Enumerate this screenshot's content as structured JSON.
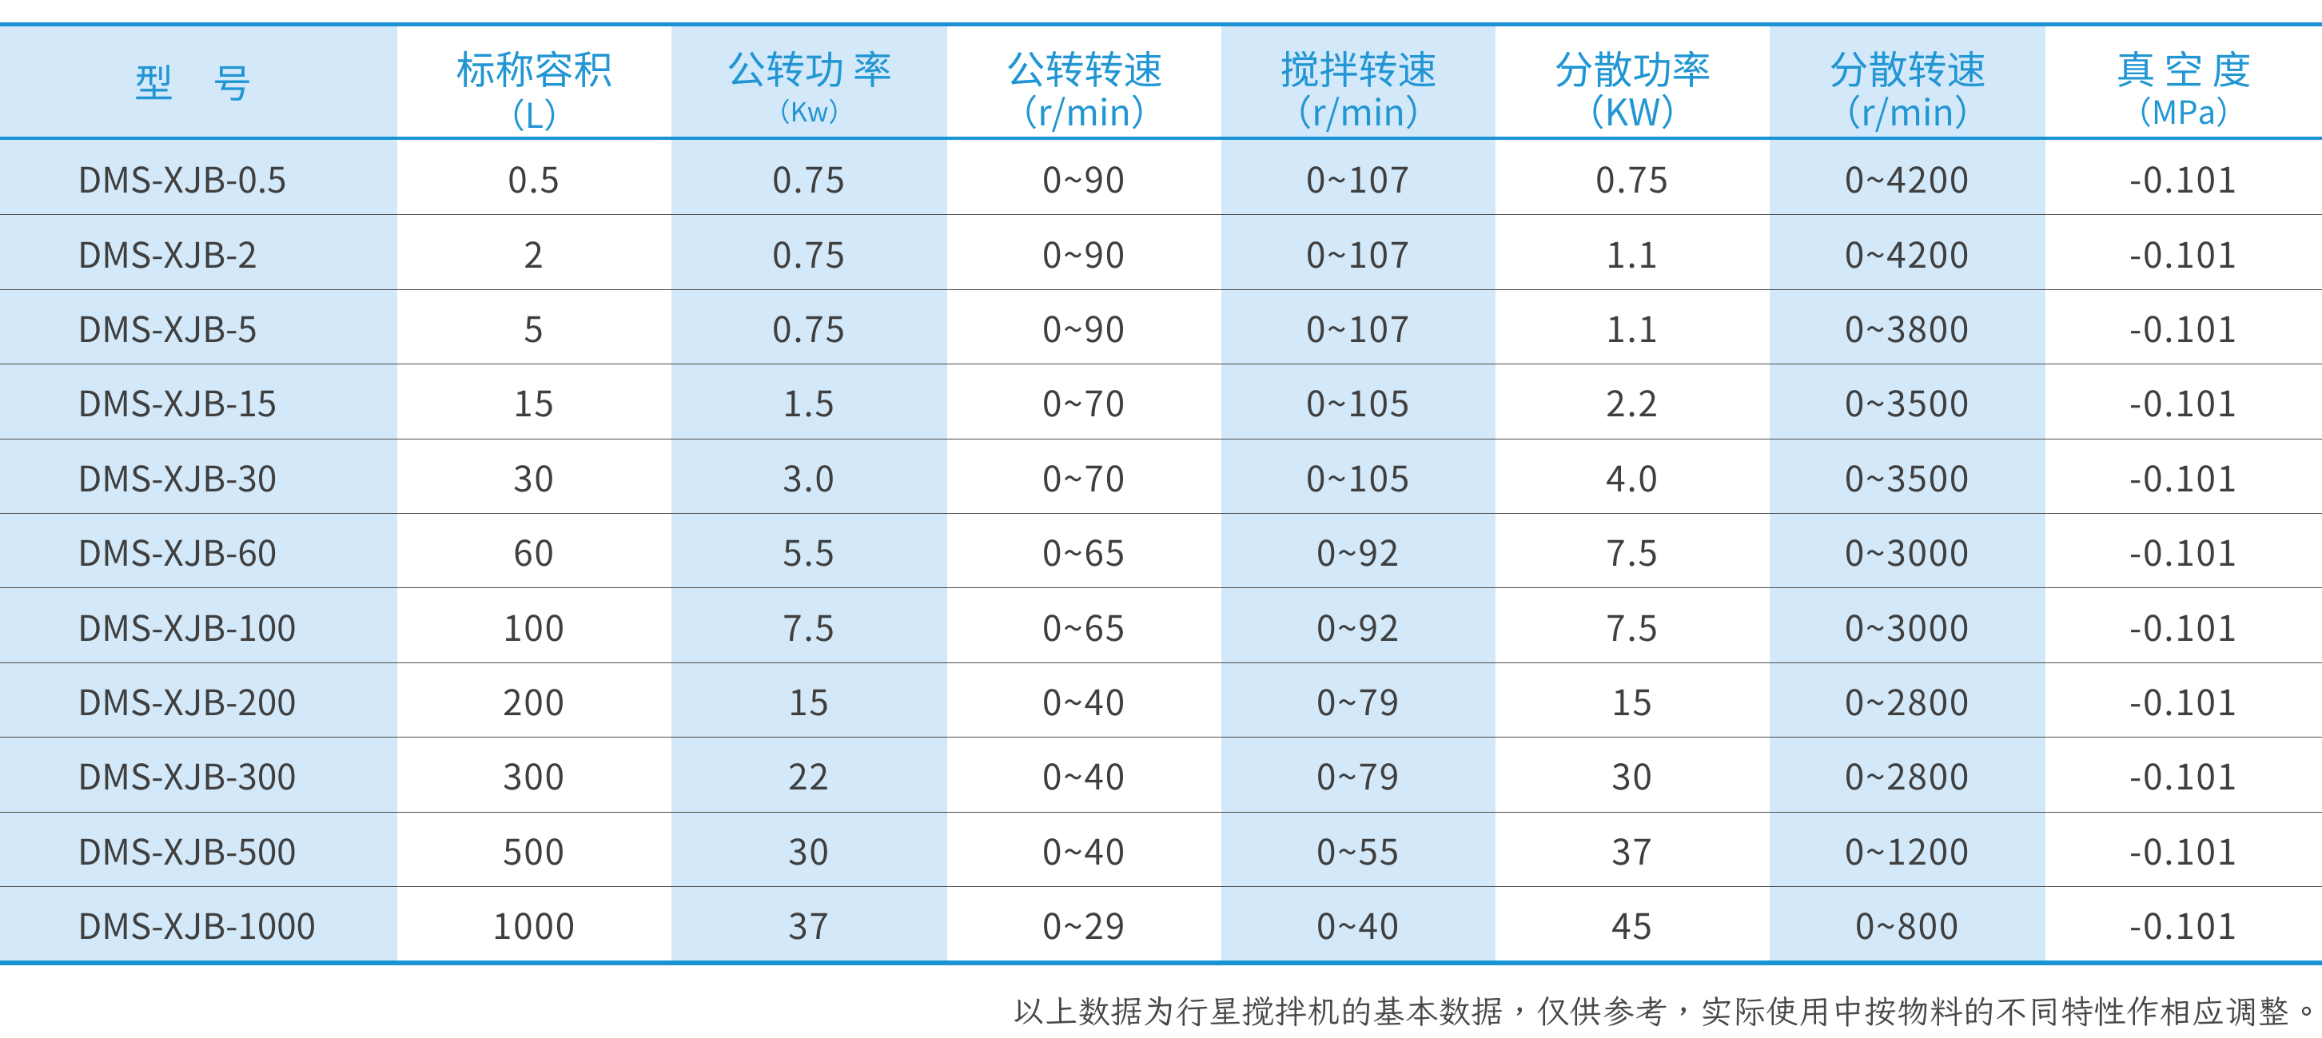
{
  "colors": {
    "accent_blue": "#1a93d4",
    "header_text_blue": "#2196d3",
    "shaded_column_blue": "#d3e8f8",
    "body_text_gray": "#3f3f3f",
    "row_divider_gray": "#4c4c4c",
    "footnote_gray": "#474747"
  },
  "table": {
    "columns": [
      {
        "title": "型　号",
        "unit": ""
      },
      {
        "title": "标称容积",
        "unit": "（L）"
      },
      {
        "title": "公转功 率",
        "unit": "（Kw）"
      },
      {
        "title": "公转转速",
        "unit": "（r/min）"
      },
      {
        "title": "搅拌转速",
        "unit": "（r/min）"
      },
      {
        "title": "分散功率",
        "unit": "（KW）"
      },
      {
        "title": "分散转速",
        "unit": "（r/min）"
      },
      {
        "title": "真 空 度",
        "unit": "（MPa）"
      }
    ],
    "rows": [
      {
        "model": "DMS-XJB-0.5",
        "values": [
          "0.5",
          "0.75",
          "0~90",
          "0~107",
          "0.75",
          "0~4200",
          "-0.101"
        ]
      },
      {
        "model": "DMS-XJB-2",
        "values": [
          "2",
          "0.75",
          "0~90",
          "0~107",
          "1.1",
          "0~4200",
          "-0.101"
        ]
      },
      {
        "model": "DMS-XJB-5",
        "values": [
          "5",
          "0.75",
          "0~90",
          "0~107",
          "1.1",
          "0~3800",
          "-0.101"
        ]
      },
      {
        "model": "DMS-XJB-15",
        "values": [
          "15",
          "1.5",
          "0~70",
          "0~105",
          "2.2",
          "0~3500",
          "-0.101"
        ]
      },
      {
        "model": "DMS-XJB-30",
        "values": [
          "30",
          "3.0",
          "0~70",
          "0~105",
          "4.0",
          "0~3500",
          "-0.101"
        ]
      },
      {
        "model": "DMS-XJB-60",
        "values": [
          "60",
          "5.5",
          "0~65",
          "0~92",
          "7.5",
          "0~3000",
          "-0.101"
        ]
      },
      {
        "model": "DMS-XJB-100",
        "values": [
          "100",
          "7.5",
          "0~65",
          "0~92",
          "7.5",
          "0~3000",
          "-0.101"
        ]
      },
      {
        "model": "DMS-XJB-200",
        "values": [
          "200",
          "15",
          "0~40",
          "0~79",
          "15",
          "0~2800",
          "-0.101"
        ]
      },
      {
        "model": "DMS-XJB-300",
        "values": [
          "300",
          "22",
          "0~40",
          "0~79",
          "30",
          "0~2800",
          "-0.101"
        ]
      },
      {
        "model": "DMS-XJB-500",
        "values": [
          "500",
          "30",
          "0~40",
          "0~55",
          "37",
          "0~1200",
          "-0.101"
        ]
      },
      {
        "model": "DMS-XJB-1000",
        "values": [
          "1000",
          "37",
          "0~29",
          "0~40",
          "45",
          "0~800",
          "-0.101"
        ]
      }
    ]
  },
  "footnote": "以上数据为行星搅拌机的基本数据，仅供参考，实际使用中按物料的不同特性作相应调整。"
}
